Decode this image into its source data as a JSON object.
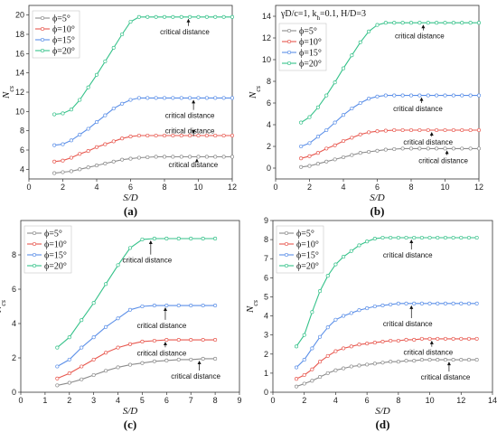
{
  "chart_data": [
    {
      "type": "line",
      "panel_label": "(a)",
      "title": "",
      "xlabel": "S/D",
      "ylabel": "N_cs",
      "xlim": [
        0,
        12
      ],
      "ylim": [
        3,
        21
      ],
      "xticks": [
        0,
        2,
        4,
        6,
        8,
        10,
        12
      ],
      "yticks": [
        4,
        6,
        8,
        10,
        12,
        14,
        16,
        18,
        20
      ],
      "legend_position": "top-left",
      "x": [
        1.5,
        2,
        2.5,
        3,
        3.5,
        4,
        4.5,
        5,
        5.5,
        6,
        6.5,
        7,
        7.5,
        8,
        8.5,
        9,
        9.5,
        10,
        10.5,
        11,
        11.5,
        12
      ],
      "series": [
        {
          "name": "ϕ=5°",
          "color": "#8c8c8c",
          "values": [
            3.6,
            3.7,
            3.8,
            4.0,
            4.2,
            4.4,
            4.6,
            4.8,
            5.0,
            5.1,
            5.2,
            5.25,
            5.3,
            5.3,
            5.3,
            5.3,
            5.3,
            5.3,
            5.3,
            5.3,
            5.3,
            5.3
          ]
        },
        {
          "name": "ϕ=10°",
          "color": "#e8584f",
          "values": [
            4.8,
            4.9,
            5.2,
            5.6,
            5.9,
            6.3,
            6.6,
            6.9,
            7.2,
            7.4,
            7.5,
            7.5,
            7.5,
            7.5,
            7.5,
            7.5,
            7.5,
            7.5,
            7.5,
            7.5,
            7.5,
            7.5
          ]
        },
        {
          "name": "ϕ=15°",
          "color": "#5b8fe8",
          "values": [
            6.5,
            6.6,
            7.0,
            7.6,
            8.2,
            8.9,
            9.6,
            10.3,
            10.8,
            11.2,
            11.4,
            11.4,
            11.4,
            11.4,
            11.4,
            11.4,
            11.4,
            11.4,
            11.4,
            11.4,
            11.4,
            11.4
          ]
        },
        {
          "name": "ϕ=20°",
          "color": "#36c28a",
          "values": [
            9.7,
            9.8,
            10.2,
            11.2,
            12.5,
            13.8,
            15.2,
            16.6,
            18.0,
            19.3,
            19.8,
            19.8,
            19.8,
            19.8,
            19.8,
            19.8,
            19.8,
            19.8,
            19.8,
            19.8,
            19.8,
            19.8
          ]
        }
      ],
      "annotations": [
        "critical distance",
        "critical distance",
        "critical distance",
        "critical distance"
      ]
    },
    {
      "type": "line",
      "panel_label": "(b)",
      "title": "γD/c=1, k_h=0.1, H/D=3",
      "xlabel": "S/D",
      "ylabel": "N_cs",
      "xlim": [
        0,
        12
      ],
      "ylim": [
        -1,
        15
      ],
      "xticks": [
        0,
        2,
        4,
        6,
        8,
        10,
        12
      ],
      "yticks": [
        0,
        2,
        4,
        6,
        8,
        10,
        12,
        14
      ],
      "legend_position": "top-left",
      "x": [
        1.5,
        2,
        2.5,
        3,
        3.5,
        4,
        4.5,
        5,
        5.5,
        6,
        6.5,
        7,
        7.5,
        8,
        8.5,
        9,
        9.5,
        10,
        10.5,
        11,
        11.5,
        12
      ],
      "series": [
        {
          "name": "ϕ=5°",
          "color": "#8c8c8c",
          "values": [
            0.1,
            0.2,
            0.4,
            0.6,
            0.8,
            1.0,
            1.2,
            1.4,
            1.5,
            1.6,
            1.7,
            1.75,
            1.8,
            1.8,
            1.8,
            1.8,
            1.8,
            1.8,
            1.8,
            1.8,
            1.8,
            1.8
          ]
        },
        {
          "name": "ϕ=10°",
          "color": "#e8584f",
          "values": [
            0.9,
            1.1,
            1.4,
            1.8,
            2.1,
            2.5,
            2.8,
            3.1,
            3.3,
            3.4,
            3.45,
            3.5,
            3.5,
            3.5,
            3.5,
            3.5,
            3.5,
            3.5,
            3.5,
            3.5,
            3.5,
            3.5
          ]
        },
        {
          "name": "ϕ=15°",
          "color": "#5b8fe8",
          "values": [
            2.0,
            2.3,
            2.9,
            3.5,
            4.2,
            4.9,
            5.5,
            6.0,
            6.4,
            6.6,
            6.7,
            6.7,
            6.7,
            6.7,
            6.7,
            6.7,
            6.7,
            6.7,
            6.7,
            6.7,
            6.7,
            6.7
          ]
        },
        {
          "name": "ϕ=20°",
          "color": "#36c28a",
          "values": [
            4.2,
            4.7,
            5.6,
            6.7,
            7.9,
            9.2,
            10.4,
            11.6,
            12.6,
            13.2,
            13.4,
            13.4,
            13.4,
            13.4,
            13.4,
            13.4,
            13.4,
            13.4,
            13.4,
            13.4,
            13.4,
            13.4
          ]
        }
      ],
      "annotations": [
        "critical distance",
        "critical distance",
        "critical distance",
        "critical distance"
      ]
    },
    {
      "type": "line",
      "panel_label": "(c)",
      "title": "",
      "xlabel": "S/D",
      "ylabel": "N_cs",
      "xlim": [
        0,
        9
      ],
      "ylim": [
        0,
        10
      ],
      "xticks": [
        0,
        1,
        2,
        3,
        4,
        5,
        6,
        7,
        8,
        9
      ],
      "yticks": [
        0,
        2,
        4,
        6,
        8
      ],
      "legend_position": "top-left",
      "x": [
        1.5,
        2,
        2.5,
        3,
        3.5,
        4,
        4.5,
        5,
        5.5,
        6,
        6.5,
        7,
        7.5,
        8
      ],
      "series": [
        {
          "name": "ϕ=5°",
          "color": "#8c8c8c",
          "values": [
            0.4,
            0.55,
            0.75,
            1.0,
            1.25,
            1.45,
            1.6,
            1.7,
            1.8,
            1.85,
            1.9,
            1.9,
            1.95,
            1.95
          ]
        },
        {
          "name": "ϕ=10°",
          "color": "#e8584f",
          "values": [
            0.8,
            1.1,
            1.5,
            1.9,
            2.3,
            2.6,
            2.8,
            2.95,
            3.0,
            3.05,
            3.05,
            3.05,
            3.05,
            3.05
          ]
        },
        {
          "name": "ϕ=15°",
          "color": "#5b8fe8",
          "values": [
            1.5,
            1.9,
            2.6,
            3.2,
            3.8,
            4.3,
            4.8,
            5.0,
            5.05,
            5.05,
            5.05,
            5.05,
            5.05,
            5.05
          ]
        },
        {
          "name": "ϕ=20°",
          "color": "#36c28a",
          "values": [
            2.6,
            3.2,
            4.2,
            5.2,
            6.3,
            7.4,
            8.4,
            8.9,
            8.95,
            8.95,
            8.95,
            8.95,
            8.95,
            8.95
          ]
        }
      ],
      "annotations": [
        "critical distance",
        "critical distance",
        "critical distance",
        "critical distance"
      ]
    },
    {
      "type": "line",
      "panel_label": "(d)",
      "title": "",
      "xlabel": "S/D",
      "ylabel": "N_cs",
      "xlim": [
        0,
        14
      ],
      "ylim": [
        0,
        9
      ],
      "xticks": [
        0,
        2,
        4,
        6,
        8,
        10,
        12,
        14
      ],
      "yticks": [
        0,
        1,
        2,
        3,
        4,
        5,
        6,
        7,
        8,
        9
      ],
      "legend_position": "top-left",
      "x": [
        1.5,
        2,
        2.5,
        3,
        3.5,
        4,
        4.5,
        5,
        5.5,
        6,
        6.5,
        7,
        7.5,
        8,
        8.5,
        9,
        9.5,
        10,
        10.5,
        11,
        11.5,
        12,
        12.5,
        13
      ],
      "series": [
        {
          "name": "ϕ=5°",
          "color": "#8c8c8c",
          "values": [
            0.3,
            0.45,
            0.6,
            0.8,
            1.0,
            1.15,
            1.25,
            1.35,
            1.4,
            1.45,
            1.5,
            1.55,
            1.6,
            1.6,
            1.65,
            1.65,
            1.7,
            1.7,
            1.7,
            1.7,
            1.7,
            1.7,
            1.7,
            1.7
          ]
        },
        {
          "name": "ϕ=10°",
          "color": "#e8584f",
          "values": [
            0.7,
            0.9,
            1.2,
            1.6,
            1.9,
            2.15,
            2.3,
            2.4,
            2.5,
            2.55,
            2.6,
            2.65,
            2.7,
            2.7,
            2.75,
            2.75,
            2.8,
            2.8,
            2.8,
            2.8,
            2.8,
            2.8,
            2.8,
            2.8
          ]
        },
        {
          "name": "ϕ=15°",
          "color": "#5b8fe8",
          "values": [
            1.3,
            1.7,
            2.3,
            2.9,
            3.4,
            3.8,
            4.0,
            4.15,
            4.3,
            4.4,
            4.5,
            4.55,
            4.6,
            4.65,
            4.65,
            4.65,
            4.65,
            4.65,
            4.65,
            4.65,
            4.65,
            4.65,
            4.65,
            4.65
          ]
        },
        {
          "name": "ϕ=20°",
          "color": "#36c28a",
          "values": [
            2.4,
            3.0,
            4.2,
            5.3,
            6.1,
            6.7,
            7.1,
            7.4,
            7.7,
            7.9,
            8.05,
            8.1,
            8.1,
            8.1,
            8.1,
            8.1,
            8.1,
            8.1,
            8.1,
            8.1,
            8.1,
            8.1,
            8.1,
            8.1
          ]
        }
      ],
      "annotations": [
        "critical distance",
        "critical distance",
        "critical distance",
        "critical distance"
      ]
    }
  ]
}
